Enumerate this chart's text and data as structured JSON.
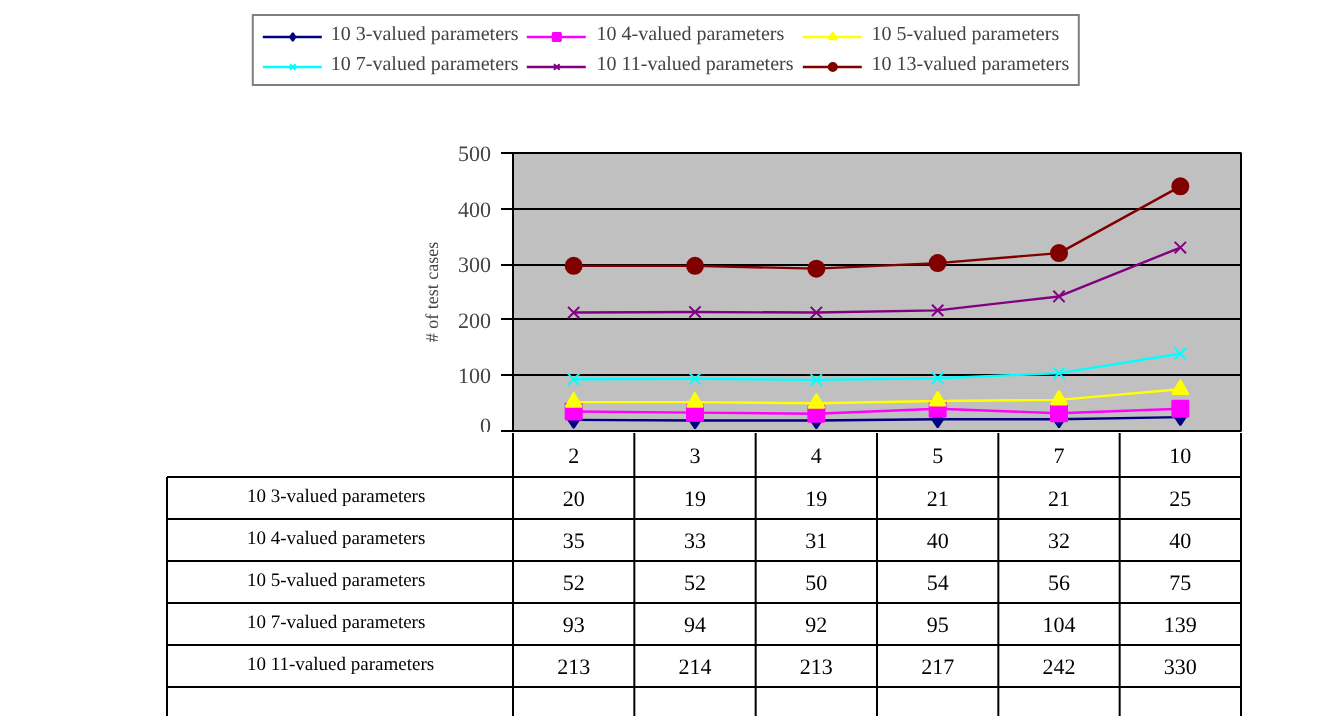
{
  "chart_data": {
    "type": "line",
    "ylabel": "# of test cases",
    "categories": [
      "2",
      "3",
      "4",
      "5",
      "7",
      "10"
    ],
    "ylim": [
      0,
      500
    ],
    "yticks": [
      0,
      100,
      200,
      300,
      400,
      500
    ],
    "grid": "y",
    "legend": "top",
    "series": [
      {
        "name": "10 3-valued parameters",
        "color": "#000080",
        "marker": "diamond",
        "values": [
          20,
          19,
          19,
          21,
          21,
          25
        ],
        "value_labels": [
          "20",
          "19",
          "19",
          "21",
          "21",
          "25"
        ]
      },
      {
        "name": "10 4-valued parameters",
        "color": "#ff00ff",
        "marker": "square",
        "values": [
          35,
          33,
          31,
          40,
          32,
          40
        ],
        "value_labels": [
          "35",
          "33",
          "31",
          "40",
          "32",
          "40"
        ]
      },
      {
        "name": "10 5-valued parameters",
        "color": "#ffff00",
        "marker": "triangle",
        "values": [
          52,
          52,
          50,
          54,
          56,
          75
        ],
        "value_labels": [
          "52",
          "52",
          "50",
          "54",
          "56",
          "75"
        ]
      },
      {
        "name": "10 7-valued parameters",
        "color": "#00ffff",
        "marker": "cross",
        "values": [
          93,
          94,
          92,
          95,
          104,
          139
        ],
        "value_labels": [
          "93",
          "94",
          "92",
          "95",
          "104",
          "139"
        ]
      },
      {
        "name": "10 11-valued parameters",
        "color": "#800080",
        "marker": "cross",
        "values": [
          213,
          214,
          213,
          217,
          242,
          330
        ],
        "value_labels": [
          "213",
          "214",
          "213",
          "217",
          "242",
          "330"
        ]
      },
      {
        "name": "10 13-valued parameters",
        "color": "#800000",
        "marker": "circle",
        "values": [
          297,
          297,
          292,
          302,
          320,
          440
        ]
      }
    ]
  }
}
